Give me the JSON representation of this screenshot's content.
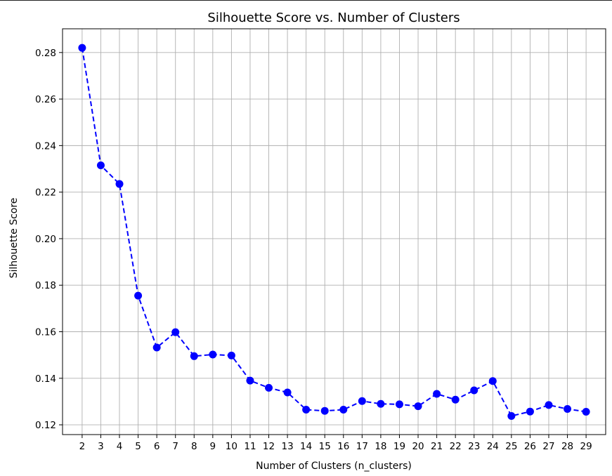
{
  "colors": {
    "series": "#0000ff",
    "grid": "#b0b0b0",
    "axes": "#000000"
  },
  "chart_data": {
    "type": "line",
    "title": "Silhouette Score vs. Number of Clusters",
    "xlabel": "Number of Clusters (n_clusters)",
    "ylabel": "Silhouette Score",
    "grid": true,
    "line_style": "dashed",
    "marker": "circle",
    "x": [
      2,
      3,
      4,
      5,
      6,
      7,
      8,
      9,
      10,
      11,
      12,
      13,
      14,
      15,
      16,
      17,
      18,
      19,
      20,
      21,
      22,
      23,
      24,
      25,
      26,
      27,
      28,
      29
    ],
    "y": [
      0.282,
      0.2315,
      0.2235,
      0.1755,
      0.1532,
      0.1598,
      0.1495,
      0.1502,
      0.1498,
      0.139,
      0.1359,
      0.1339,
      0.1265,
      0.126,
      0.1265,
      0.1302,
      0.129,
      0.1288,
      0.128,
      0.1333,
      0.1308,
      0.1348,
      0.1388,
      0.1238,
      0.1257,
      0.1285,
      0.1268,
      0.1256
    ],
    "xticks": [
      "2",
      "3",
      "4",
      "5",
      "6",
      "7",
      "8",
      "9",
      "10",
      "11",
      "12",
      "13",
      "14",
      "15",
      "16",
      "17",
      "18",
      "19",
      "20",
      "21",
      "22",
      "23",
      "24",
      "25",
      "26",
      "27",
      "28",
      "29"
    ],
    "yticks": [
      "0.12",
      "0.14",
      "0.16",
      "0.18",
      "0.20",
      "0.22",
      "0.24",
      "0.26",
      "0.28"
    ],
    "xlim": [
      0.95,
      30.05
    ],
    "ylim": [
      0.1158,
      0.2902
    ]
  }
}
